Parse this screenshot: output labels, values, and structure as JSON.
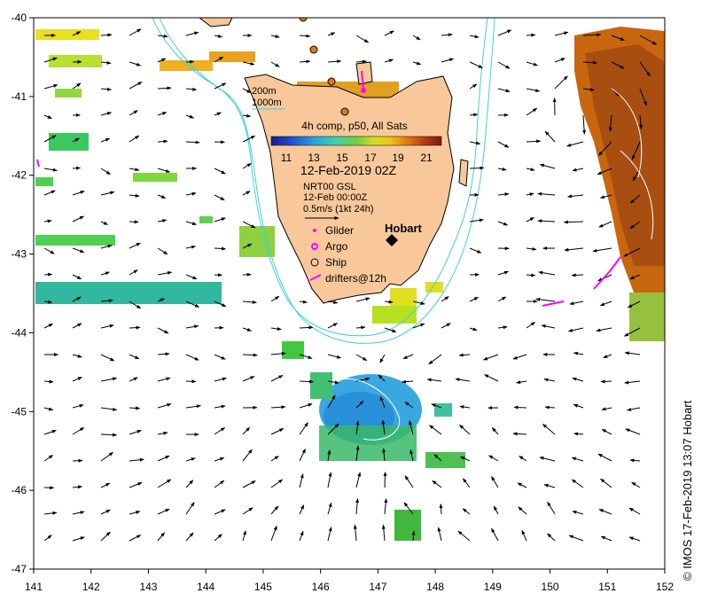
{
  "colorbar": {
    "title": "4h comp, p50, All Sats",
    "ticks": [
      "11",
      "13",
      "15",
      "17",
      "19",
      "21"
    ],
    "colors": [
      "#1a1a8c",
      "#1e50d0",
      "#2aa0e0",
      "#40d0b0",
      "#70d040",
      "#d0e020",
      "#f0c020",
      "#e07a10",
      "#b43c14",
      "#7a1e0a"
    ]
  },
  "datetime": "12-Feb-2019 02Z",
  "current_info": {
    "line1": "NRT00 GSL",
    "line2": "12-Feb 00:00Z",
    "line3": "0.5m/s (1kt 24h)"
  },
  "isobath_legend": {
    "shallow": "200m",
    "deep": "1000m"
  },
  "city": "Hobart",
  "legend": [
    {
      "symbol": "glider",
      "label": "Glider"
    },
    {
      "symbol": "argo",
      "label": "Argo"
    },
    {
      "symbol": "ship",
      "label": "Ship"
    },
    {
      "symbol": "drifter",
      "label": "drifters@12h"
    }
  ],
  "axes": {
    "x_ticks": [
      "141",
      "142",
      "143",
      "144",
      "145",
      "146",
      "147",
      "148",
      "149",
      "150",
      "151",
      "152"
    ],
    "y_ticks": [
      "-40",
      "-41",
      "-42",
      "-43",
      "-44",
      "-45",
      "-46",
      "-47"
    ],
    "lon_range": [
      141,
      152
    ],
    "lat_range": [
      -47,
      -40
    ]
  },
  "credit": "© IMOS 17-Feb-2019 13:07 Hobart",
  "colors": {
    "land": "#f8c89a",
    "isobath": "#3cd0dc",
    "glider": "#ff00ff",
    "drifter": "#ff00ff",
    "ship_fill": "#e07a10"
  }
}
